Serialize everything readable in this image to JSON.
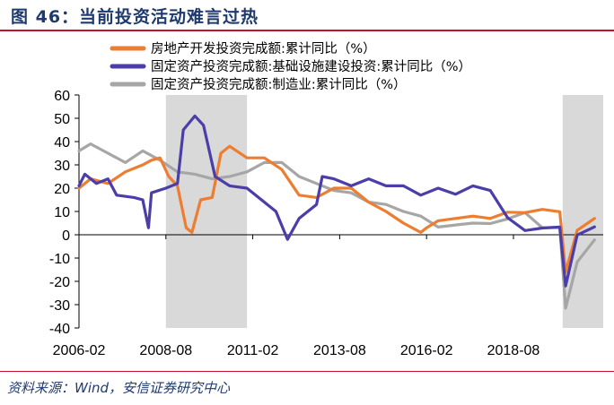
{
  "figure": {
    "title": "图 46：当前投资活动难言过热",
    "source": "资料来源：Wind，安信证券研究中心"
  },
  "colors": {
    "title": "#1f3a6e",
    "rule": "#c8102e",
    "shade": "#d9d9d9"
  },
  "chart_data": {
    "type": "line",
    "title": "",
    "xlabel": "",
    "ylabel": "",
    "ylim": [
      -40,
      60
    ],
    "yticks": [
      -40,
      -30,
      -20,
      -10,
      0,
      10,
      20,
      30,
      40,
      50,
      60
    ],
    "xlim": [
      "2006-02",
      "2021-03"
    ],
    "xticks": [
      "2006-02",
      "2008-08",
      "2011-02",
      "2013-08",
      "2016-02",
      "2018-08"
    ],
    "grid": false,
    "legend_position": "top",
    "shaded_periods": [
      [
        "2008-08",
        "2010-12"
      ],
      [
        "2020-01",
        "2021-03"
      ]
    ],
    "series": [
      {
        "name": "房地产开发投资完成额:累计同比（%）",
        "color": "#ed7d31",
        "points": [
          [
            "2006-02",
            20
          ],
          [
            "2006-06",
            24
          ],
          [
            "2006-12",
            22
          ],
          [
            "2007-06",
            27
          ],
          [
            "2007-12",
            30
          ],
          [
            "2008-03",
            32
          ],
          [
            "2008-06",
            33
          ],
          [
            "2008-09",
            25
          ],
          [
            "2008-12",
            21
          ],
          [
            "2009-03",
            3
          ],
          [
            "2009-05",
            1
          ],
          [
            "2009-08",
            15
          ],
          [
            "2009-12",
            16
          ],
          [
            "2010-03",
            35
          ],
          [
            "2010-06",
            38
          ],
          [
            "2010-12",
            33
          ],
          [
            "2011-06",
            33
          ],
          [
            "2011-12",
            28
          ],
          [
            "2012-06",
            17
          ],
          [
            "2012-12",
            16
          ],
          [
            "2013-06",
            20
          ],
          [
            "2013-12",
            20
          ],
          [
            "2014-06",
            14
          ],
          [
            "2014-12",
            10
          ],
          [
            "2015-06",
            5
          ],
          [
            "2015-12",
            1
          ],
          [
            "2016-02",
            3
          ],
          [
            "2016-06",
            6
          ],
          [
            "2016-12",
            7
          ],
          [
            "2017-06",
            8
          ],
          [
            "2017-12",
            7
          ],
          [
            "2018-06",
            9.7
          ],
          [
            "2018-12",
            9.5
          ],
          [
            "2019-06",
            10.9
          ],
          [
            "2019-12",
            9.9
          ],
          [
            "2020-02",
            -16
          ],
          [
            "2020-06",
            1.9
          ],
          [
            "2020-12",
            7
          ]
        ]
      },
      {
        "name": "固定资产投资完成额:基础设施建设投资:累计同比（%）",
        "color": "#4b3ea8",
        "points": [
          [
            "2006-02",
            21
          ],
          [
            "2006-04",
            26
          ],
          [
            "2006-08",
            22
          ],
          [
            "2006-12",
            24
          ],
          [
            "2007-03",
            17
          ],
          [
            "2007-09",
            16
          ],
          [
            "2007-12",
            15
          ],
          [
            "2008-02",
            3
          ],
          [
            "2008-03",
            18
          ],
          [
            "2008-08",
            20
          ],
          [
            "2008-12",
            22
          ],
          [
            "2009-02",
            45
          ],
          [
            "2009-06",
            51
          ],
          [
            "2009-09",
            47
          ],
          [
            "2010-01",
            25
          ],
          [
            "2010-06",
            21
          ],
          [
            "2010-12",
            20
          ],
          [
            "2011-06",
            14
          ],
          [
            "2011-10",
            10
          ],
          [
            "2012-02",
            -2
          ],
          [
            "2012-06",
            7
          ],
          [
            "2012-12",
            13
          ],
          [
            "2013-02",
            25
          ],
          [
            "2013-06",
            24
          ],
          [
            "2013-12",
            21
          ],
          [
            "2014-06",
            24
          ],
          [
            "2014-12",
            21
          ],
          [
            "2015-06",
            21
          ],
          [
            "2015-12",
            17
          ],
          [
            "2016-06",
            20
          ],
          [
            "2016-12",
            17.4
          ],
          [
            "2017-06",
            21
          ],
          [
            "2017-12",
            19
          ],
          [
            "2018-06",
            7.3
          ],
          [
            "2018-12",
            1.8
          ],
          [
            "2019-06",
            2.9
          ],
          [
            "2019-12",
            3.3
          ],
          [
            "2020-02",
            -22
          ],
          [
            "2020-06",
            -0.1
          ],
          [
            "2020-12",
            3.4
          ]
        ]
      },
      {
        "name": "固定资产投资完成额:制造业:累计同比（%）",
        "color": "#a6a6a6",
        "points": [
          [
            "2006-02",
            36
          ],
          [
            "2006-06",
            39
          ],
          [
            "2006-12",
            35
          ],
          [
            "2007-06",
            31
          ],
          [
            "2007-12",
            36
          ],
          [
            "2008-06",
            32
          ],
          [
            "2008-12",
            27
          ],
          [
            "2009-06",
            26
          ],
          [
            "2009-12",
            24
          ],
          [
            "2010-06",
            25
          ],
          [
            "2010-12",
            27
          ],
          [
            "2011-06",
            31
          ],
          [
            "2011-12",
            31
          ],
          [
            "2012-06",
            25
          ],
          [
            "2012-12",
            22
          ],
          [
            "2013-06",
            19
          ],
          [
            "2013-12",
            18
          ],
          [
            "2014-06",
            14
          ],
          [
            "2014-12",
            13
          ],
          [
            "2015-06",
            10
          ],
          [
            "2015-12",
            8
          ],
          [
            "2016-06",
            3.3
          ],
          [
            "2016-12",
            4.2
          ],
          [
            "2017-06",
            5
          ],
          [
            "2017-12",
            4.8
          ],
          [
            "2018-06",
            6.8
          ],
          [
            "2018-12",
            9.5
          ],
          [
            "2019-06",
            3
          ],
          [
            "2019-12",
            3.1
          ],
          [
            "2020-02",
            -31.5
          ],
          [
            "2020-06",
            -11.7
          ],
          [
            "2020-12",
            -2.2
          ]
        ]
      }
    ]
  }
}
